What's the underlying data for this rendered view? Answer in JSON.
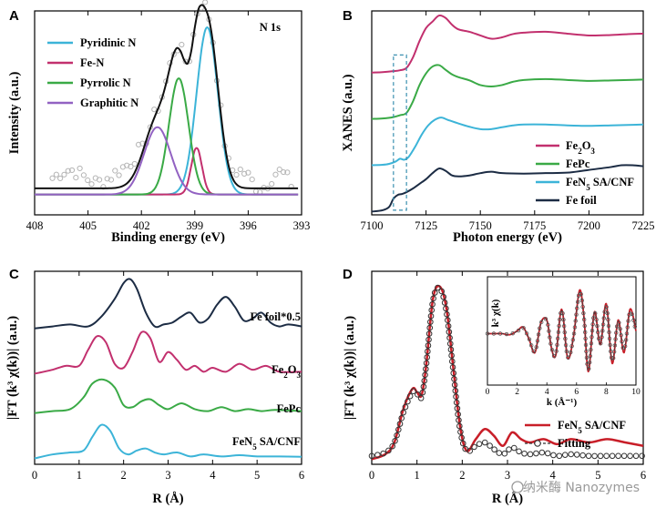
{
  "figure": {
    "watermark": "纳米酶 Nanozymes"
  },
  "chart_data": [
    {
      "panel": "A",
      "type": "line",
      "title": "N 1s",
      "xlabel": "Binding energy (eV)",
      "ylabel": "Intensity (a.u.)",
      "xlim": [
        408,
        393
      ],
      "x_ticks": [
        "408",
        "405",
        "402",
        "399",
        "396",
        "393"
      ],
      "legend": [
        "Pyridinic N",
        "Fe-N",
        "Pyrrolic N",
        "Graphitic N"
      ],
      "legend_position": "top-left",
      "background": 0.1,
      "components": [
        {
          "name": "Pyridinic N",
          "color": "#3cb4d8",
          "center": 398.3,
          "height": 0.82,
          "width": 0.6
        },
        {
          "name": "Fe-N",
          "color": "#c2306e",
          "center": 398.9,
          "height": 0.23,
          "width": 0.3
        },
        {
          "name": "Pyrrolic N",
          "color": "#3aaa46",
          "center": 399.9,
          "height": 0.57,
          "width": 0.55
        },
        {
          "name": "Graphitic N",
          "color": "#9262c2",
          "center": 401.1,
          "height": 0.33,
          "width": 0.75
        }
      ],
      "envelope": {
        "name": "Sum",
        "color": "#111111"
      },
      "raw": {
        "name": "Data",
        "color": "#b5b5b5"
      }
    },
    {
      "panel": "B",
      "type": "line",
      "xlabel": "Photon energy (eV)",
      "ylabel": "XANES (a.u.)",
      "xlim": [
        7100,
        7225
      ],
      "x_ticks": [
        "7100",
        "7125",
        "7150",
        "7175",
        "7200",
        "7225"
      ],
      "legend_position": "bottom-right",
      "legend": [
        "Fe2O3",
        "FePc",
        "FeN5 SA/CNF",
        "Fe foil"
      ],
      "legend_entries": [
        {
          "base": "Fe",
          "sub": "2",
          "rest": "O",
          "sub2": "3"
        },
        {
          "base": "FePc",
          "sub": "",
          "rest": "",
          "sub2": ""
        },
        {
          "base": "FeN",
          "sub": "5",
          "rest": " SA/CNF",
          "sub2": ""
        },
        {
          "base": "Fe foil",
          "sub": "",
          "rest": "",
          "sub2": ""
        }
      ],
      "series": [
        {
          "name": "Fe2O3",
          "color": "#c2306e",
          "offset": 3.0,
          "x": [
            7100,
            7105,
            7110,
            7113,
            7116,
            7119,
            7122,
            7125,
            7128,
            7131,
            7134,
            7137,
            7140,
            7145,
            7150,
            7155,
            7160,
            7165,
            7170,
            7180,
            7190,
            7200,
            7210,
            7218,
            7225
          ],
          "y": [
            0.02,
            0.03,
            0.05,
            0.07,
            0.12,
            0.35,
            0.7,
            0.98,
            1.12,
            1.25,
            1.2,
            1.05,
            0.95,
            0.9,
            0.82,
            0.75,
            0.78,
            0.85,
            0.88,
            0.9,
            0.86,
            0.82,
            0.83,
            0.85,
            0.86
          ]
        },
        {
          "name": "FePc",
          "color": "#3aaa46",
          "offset": 2.0,
          "x": [
            7100,
            7105,
            7110,
            7113,
            7116,
            7119,
            7122,
            7125,
            7128,
            7131,
            7134,
            7137,
            7140,
            7145,
            7150,
            7155,
            7160,
            7165,
            7170,
            7180,
            7190,
            7200,
            7210,
            7218,
            7225
          ],
          "y": [
            0.02,
            0.03,
            0.06,
            0.1,
            0.15,
            0.4,
            0.75,
            1.0,
            1.15,
            1.18,
            1.08,
            0.98,
            0.92,
            0.85,
            0.75,
            0.72,
            0.75,
            0.82,
            0.86,
            0.88,
            0.86,
            0.84,
            0.85,
            0.86,
            0.87
          ]
        },
        {
          "name": "FeN5 SA/CNF",
          "color": "#3cb4d8",
          "offset": 1.0,
          "x": [
            7100,
            7105,
            7108,
            7111,
            7113,
            7115,
            7117,
            7120,
            7123,
            7126,
            7129,
            7132,
            7135,
            7140,
            7145,
            7150,
            7155,
            7160,
            7165,
            7170,
            7180,
            7190,
            7200,
            7210,
            7218,
            7225
          ],
          "y": [
            0.02,
            0.03,
            0.05,
            0.1,
            0.16,
            0.14,
            0.2,
            0.42,
            0.68,
            0.88,
            1.0,
            1.05,
            1.0,
            0.92,
            0.85,
            0.8,
            0.8,
            0.84,
            0.88,
            0.9,
            0.9,
            0.88,
            0.87,
            0.88,
            0.89,
            0.9
          ]
        },
        {
          "name": "Fe foil",
          "color": "#1c2c44",
          "offset": 0.0,
          "x": [
            7100,
            7105,
            7108,
            7110,
            7112,
            7114,
            7116,
            7119,
            7122,
            7125,
            7128,
            7131,
            7134,
            7137,
            7140,
            7145,
            7150,
            7155,
            7160,
            7170,
            7180,
            7190,
            7200,
            7210,
            7215,
            7220,
            7225
          ],
          "y": [
            0.02,
            0.05,
            0.12,
            0.3,
            0.38,
            0.4,
            0.44,
            0.52,
            0.62,
            0.72,
            0.85,
            0.95,
            0.9,
            0.8,
            0.78,
            0.8,
            0.85,
            0.88,
            0.85,
            0.84,
            0.85,
            0.86,
            0.92,
            0.98,
            1.02,
            1.02,
            1.0
          ]
        }
      ],
      "annotation": "dashed box around pre-edge 7110-7116 eV"
    },
    {
      "panel": "C",
      "type": "line",
      "xlabel": "R (Å)",
      "ylabel": "|FT (k³ χ(k))| (a.u.)",
      "xlim": [
        0,
        6
      ],
      "x_ticks": [
        "0",
        "1",
        "2",
        "3",
        "4",
        "5",
        "6"
      ],
      "labels": [
        "Fe foil*0.5",
        "Fe2O3",
        "FePc",
        "FeN5 SA/CNF"
      ],
      "label_entries": [
        {
          "base": "Fe foil*0.5",
          "sub": "",
          "rest": "",
          "sub2": ""
        },
        {
          "base": "Fe",
          "sub": "2",
          "rest": "O",
          "sub2": "3"
        },
        {
          "base": "FePc",
          "sub": "",
          "rest": "",
          "sub2": ""
        },
        {
          "base": "FeN",
          "sub": "5",
          "rest": " SA/CNF",
          "sub2": ""
        }
      ],
      "series": [
        {
          "name": "Fe foil*0.5",
          "color": "#1c2c44",
          "offset": 3.3,
          "x": [
            0,
            0.4,
            0.8,
            1.2,
            1.5,
            1.8,
            2.0,
            2.15,
            2.3,
            2.5,
            2.7,
            2.9,
            3.1,
            3.3,
            3.5,
            3.7,
            3.9,
            4.1,
            4.3,
            4.5,
            4.7,
            4.9,
            5.1,
            5.3,
            5.5,
            5.7,
            6.0
          ],
          "y": [
            0.0,
            0.05,
            0.1,
            0.05,
            0.3,
            0.75,
            1.15,
            1.25,
            1.0,
            0.4,
            0.05,
            0.1,
            0.15,
            0.3,
            0.4,
            0.15,
            0.25,
            0.6,
            0.8,
            0.55,
            0.2,
            0.25,
            0.4,
            0.15,
            0.05,
            0.1,
            0.05
          ]
        },
        {
          "name": "Fe2O3",
          "color": "#c2306e",
          "offset": 2.15,
          "x": [
            0,
            0.4,
            0.7,
            1.0,
            1.2,
            1.4,
            1.6,
            1.8,
            2.0,
            2.2,
            2.4,
            2.6,
            2.8,
            3.0,
            3.2,
            3.4,
            3.6,
            3.8,
            4.0,
            4.3,
            4.6,
            4.9,
            5.2,
            5.5,
            6.0
          ],
          "y": [
            0.0,
            0.1,
            0.2,
            0.2,
            0.6,
            0.95,
            0.8,
            0.25,
            0.15,
            0.55,
            1.05,
            0.9,
            0.3,
            0.55,
            0.35,
            0.1,
            0.2,
            0.05,
            0.15,
            0.05,
            0.25,
            0.1,
            0.2,
            0.05,
            0.05
          ]
        },
        {
          "name": "FePc",
          "color": "#3aaa46",
          "offset": 1.15,
          "x": [
            0,
            0.4,
            0.8,
            1.1,
            1.3,
            1.55,
            1.8,
            2.0,
            2.2,
            2.4,
            2.6,
            2.8,
            3.0,
            3.3,
            3.6,
            3.9,
            4.2,
            4.5,
            4.8,
            5.1,
            5.4,
            6.0
          ],
          "y": [
            0.0,
            0.05,
            0.1,
            0.4,
            0.75,
            0.85,
            0.65,
            0.2,
            0.15,
            0.3,
            0.35,
            0.2,
            0.1,
            0.25,
            0.1,
            0.05,
            0.15,
            0.05,
            0.1,
            0.05,
            0.08,
            0.05
          ]
        },
        {
          "name": "FeN5 SA/CNF",
          "color": "#3cb4d8",
          "offset": 0.0,
          "x": [
            0,
            0.4,
            0.8,
            1.1,
            1.3,
            1.5,
            1.7,
            1.9,
            2.1,
            2.3,
            2.5,
            2.7,
            2.9,
            3.2,
            3.5,
            3.8,
            4.2,
            4.6,
            5.0,
            5.5,
            6.0
          ],
          "y": [
            0.0,
            0.1,
            0.15,
            0.2,
            0.55,
            0.85,
            0.7,
            0.25,
            0.1,
            0.2,
            0.25,
            0.15,
            0.1,
            0.15,
            0.05,
            0.1,
            0.05,
            0.08,
            0.05,
            0.05,
            0.04
          ]
        }
      ]
    },
    {
      "panel": "D",
      "type": "line",
      "xlabel": "R (Å)",
      "ylabel": "|FT (k³ χ(k))| (a.u.)",
      "xlim": [
        0,
        6
      ],
      "ylim": [
        0,
        1.1
      ],
      "x_ticks": [
        "0",
        "1",
        "2",
        "3",
        "4",
        "5",
        "6"
      ],
      "legend": [
        "FeN5 SA/CNF",
        "Fitting"
      ],
      "legend_entries": [
        {
          "base": "FeN",
          "sub": "5",
          "rest": " SA/CNF",
          "sub2": ""
        },
        {
          "base": "Fitting",
          "sub": "",
          "rest": "",
          "sub2": ""
        }
      ],
      "legend_position": "bottom-right",
      "series": [
        {
          "name": "FeN5 SA/CNF",
          "color": "#c81e28",
          "x": [
            0,
            0.3,
            0.5,
            0.7,
            0.9,
            1.0,
            1.1,
            1.2,
            1.35,
            1.5,
            1.65,
            1.8,
            1.95,
            2.1,
            2.3,
            2.5,
            2.7,
            2.9,
            3.1,
            3.3,
            3.5,
            3.8,
            4.1,
            4.4,
            4.8,
            5.2,
            5.6,
            6.0
          ],
          "y": [
            0.0,
            0.03,
            0.1,
            0.3,
            0.42,
            0.4,
            0.38,
            0.55,
            0.95,
            1.03,
            0.9,
            0.55,
            0.2,
            0.05,
            0.12,
            0.18,
            0.14,
            0.08,
            0.16,
            0.12,
            0.1,
            0.12,
            0.09,
            0.12,
            0.1,
            0.12,
            0.1,
            0.08
          ]
        },
        {
          "name": "Fitting",
          "color": "#333333",
          "marker": "open-circle",
          "x": [
            0,
            0.3,
            0.5,
            0.7,
            0.9,
            1.0,
            1.1,
            1.2,
            1.35,
            1.5,
            1.65,
            1.8,
            1.95,
            2.1,
            2.3,
            2.5,
            2.7,
            2.9,
            3.1,
            3.3,
            3.5,
            3.8,
            4.1,
            4.4,
            4.8,
            5.2,
            5.6,
            6.0
          ],
          "y": [
            0.02,
            0.04,
            0.1,
            0.28,
            0.4,
            0.39,
            0.37,
            0.55,
            0.94,
            1.02,
            0.88,
            0.53,
            0.18,
            0.05,
            0.08,
            0.1,
            0.06,
            0.03,
            0.07,
            0.04,
            0.03,
            0.04,
            0.02,
            0.03,
            0.02,
            0.02,
            0.02,
            0.02
          ]
        }
      ],
      "inset": {
        "xlabel": "k (Å⁻¹)",
        "ylabel": "k³ χ(k)",
        "xlim": [
          0,
          10
        ],
        "x_ticks": [
          "0",
          "2",
          "4",
          "6",
          "8",
          "10"
        ],
        "series": [
          {
            "name": "FeN5 SA/CNF",
            "color": "#c81e28",
            "x": [
              0,
              0.5,
              1.0,
              1.5,
              2.0,
              2.4,
              2.8,
              3.2,
              3.6,
              4.0,
              4.3,
              4.6,
              5.0,
              5.4,
              5.8,
              6.2,
              6.5,
              6.8,
              7.2,
              7.6,
              8.0,
              8.4,
              8.8,
              9.2,
              9.6,
              10.0
            ],
            "y": [
              0.0,
              0.0,
              0.0,
              -0.02,
              0.05,
              0.12,
              -0.1,
              -0.35,
              0.2,
              0.25,
              -0.25,
              -0.4,
              0.45,
              -0.45,
              -0.05,
              0.8,
              0.3,
              -0.7,
              0.4,
              -0.2,
              0.55,
              -0.55,
              0.25,
              -0.35,
              0.45,
              0.05
            ]
          },
          {
            "name": "Fitting",
            "color": "#333333",
            "marker": "open-circle",
            "x": [
              0,
              0.5,
              1.0,
              1.5,
              2.0,
              2.4,
              2.8,
              3.2,
              3.6,
              4.0,
              4.3,
              4.6,
              5.0,
              5.4,
              5.8,
              6.2,
              6.5,
              6.8,
              7.2,
              7.6,
              8.0,
              8.4,
              8.8,
              9.2,
              9.6,
              10.0
            ],
            "y": [
              0.0,
              0.0,
              0.0,
              -0.01,
              0.04,
              0.11,
              -0.09,
              -0.33,
              0.19,
              0.24,
              -0.24,
              -0.38,
              0.43,
              -0.43,
              -0.05,
              0.76,
              0.29,
              -0.66,
              0.38,
              -0.19,
              0.5,
              -0.5,
              0.22,
              -0.3,
              0.4,
              0.04
            ]
          }
        ]
      }
    }
  ]
}
